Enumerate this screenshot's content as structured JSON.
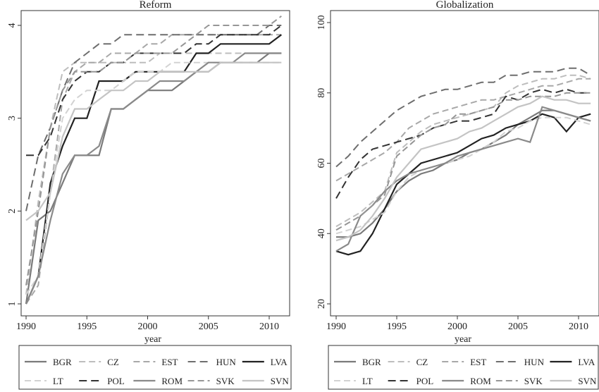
{
  "chart_data": [
    {
      "type": "line",
      "title": "Reform",
      "xlabel": "year",
      "ylabel": "",
      "xlim": [
        1990,
        2011.5
      ],
      "ylim": [
        1,
        4.1
      ],
      "xticks": [
        "1990",
        "1995",
        "2000",
        "2005",
        "2010"
      ],
      "yticks": [
        "1",
        "2",
        "3",
        "4"
      ],
      "grid": false,
      "x": [
        1990,
        1991,
        1992,
        1993,
        1994,
        1995,
        1996,
        1997,
        1998,
        1999,
        2000,
        2001,
        2002,
        2003,
        2004,
        2005,
        2006,
        2007,
        2008,
        2009,
        2010,
        2011
      ],
      "series": [
        {
          "name": "BGR",
          "color": "#7a7a7a",
          "dash": "",
          "width": 2.2,
          "values": [
            1.0,
            1.9,
            2.0,
            2.3,
            2.6,
            2.6,
            2.6,
            3.1,
            3.1,
            3.2,
            3.3,
            3.3,
            3.3,
            3.4,
            3.5,
            3.5,
            3.6,
            3.6,
            3.6,
            3.6,
            3.7,
            3.7
          ]
        },
        {
          "name": "CZ",
          "color": "#bdbdbd",
          "dash": "9,5",
          "width": 2.0,
          "values": [
            1.1,
            2.1,
            2.9,
            3.5,
            3.6,
            3.6,
            3.6,
            3.6,
            3.6,
            3.6,
            3.6,
            3.7,
            3.7,
            3.7,
            3.7,
            3.7,
            3.7,
            3.7,
            3.7,
            3.7,
            3.7,
            3.7
          ]
        },
        {
          "name": "EST",
          "color": "#a8a8a8",
          "dash": "9,5",
          "width": 2.0,
          "values": [
            1.0,
            1.2,
            2.2,
            3.2,
            3.5,
            3.6,
            3.6,
            3.7,
            3.7,
            3.7,
            3.8,
            3.8,
            3.9,
            3.9,
            3.9,
            3.9,
            3.9,
            3.9,
            3.9,
            3.9,
            3.9,
            3.9
          ]
        },
        {
          "name": "HUN",
          "color": "#6e6e6e",
          "dash": "11,6",
          "width": 2.0,
          "values": [
            2.0,
            2.6,
            2.9,
            3.3,
            3.6,
            3.7,
            3.8,
            3.8,
            3.9,
            3.9,
            3.9,
            3.9,
            3.9,
            3.9,
            3.9,
            3.9,
            3.9,
            3.9,
            3.9,
            3.9,
            4.0,
            4.0
          ]
        },
        {
          "name": "LVA",
          "color": "#222222",
          "dash": "",
          "width": 2.2,
          "values": [
            1.0,
            1.3,
            2.3,
            2.7,
            3.0,
            3.0,
            3.4,
            3.4,
            3.4,
            3.5,
            3.5,
            3.5,
            3.5,
            3.5,
            3.7,
            3.7,
            3.8,
            3.8,
            3.8,
            3.8,
            3.8,
            3.9
          ]
        },
        {
          "name": "LT",
          "color": "#d2d2d2",
          "dash": "9,5",
          "width": 2.0,
          "values": [
            1.1,
            1.3,
            2.2,
            3.0,
            3.2,
            3.3,
            3.3,
            3.3,
            3.4,
            3.5,
            3.5,
            3.5,
            3.6,
            3.6,
            3.6,
            3.6,
            3.6,
            3.6,
            3.6,
            3.6,
            3.6,
            3.6
          ]
        },
        {
          "name": "POL",
          "color": "#333333",
          "dash": "11,6",
          "width": 2.0,
          "values": [
            2.6,
            2.6,
            2.8,
            3.2,
            3.4,
            3.5,
            3.5,
            3.6,
            3.6,
            3.7,
            3.7,
            3.7,
            3.7,
            3.7,
            3.8,
            3.8,
            3.9,
            3.9,
            3.9,
            3.9,
            3.9,
            4.0
          ]
        },
        {
          "name": "ROM",
          "color": "#8a8a8a",
          "dash": "",
          "width": 2.2,
          "values": [
            1.0,
            1.3,
            1.9,
            2.4,
            2.6,
            2.6,
            2.7,
            3.1,
            3.1,
            3.2,
            3.3,
            3.4,
            3.4,
            3.4,
            3.5,
            3.6,
            3.6,
            3.6,
            3.7,
            3.7,
            3.7,
            3.7
          ]
        },
        {
          "name": "SVK",
          "color": "#969696",
          "dash": "9,5",
          "width": 2.0,
          "values": [
            1.2,
            2.0,
            2.9,
            3.3,
            3.5,
            3.5,
            3.5,
            3.6,
            3.6,
            3.7,
            3.7,
            3.7,
            3.7,
            3.8,
            3.9,
            4.0,
            4.0,
            4.0,
            4.0,
            4.0,
            4.0,
            4.1
          ]
        },
        {
          "name": "SVN",
          "color": "#c4c4c4",
          "dash": "",
          "width": 2.2,
          "values": [
            1.9,
            2.0,
            2.2,
            2.8,
            3.1,
            3.1,
            3.2,
            3.3,
            3.3,
            3.4,
            3.4,
            3.5,
            3.5,
            3.5,
            3.5,
            3.5,
            3.6,
            3.6,
            3.6,
            3.6,
            3.6,
            3.6
          ]
        }
      ],
      "legend": {
        "position": "bottom",
        "columns": 5
      }
    },
    {
      "type": "line",
      "title": "Globalization",
      "xlabel": "year",
      "ylabel": "",
      "xlim": [
        1990,
        2011.5
      ],
      "ylim": [
        20,
        100
      ],
      "xticks": [
        "1990",
        "1995",
        "2000",
        "2005",
        "2010"
      ],
      "yticks": [
        "20",
        "40",
        "60",
        "80",
        "100"
      ],
      "grid": false,
      "x": [
        1990,
        1991,
        1992,
        1993,
        1994,
        1995,
        1996,
        1997,
        1998,
        1999,
        2000,
        2001,
        2002,
        2003,
        2004,
        2005,
        2006,
        2007,
        2008,
        2009,
        2010,
        2011
      ],
      "series": [
        {
          "name": "BGR",
          "color": "#7a7a7a",
          "dash": "",
          "width": 2.2,
          "values": [
            39,
            39,
            40,
            43,
            47,
            52,
            55,
            57,
            58,
            60,
            61,
            63,
            64,
            66,
            68,
            71,
            73,
            75,
            75,
            74,
            73,
            72
          ]
        },
        {
          "name": "CZ",
          "color": "#bdbdbd",
          "dash": "9,5",
          "width": 2.0,
          "values": [
            42,
            44,
            46,
            49,
            52,
            63,
            66,
            69,
            71,
            72,
            73,
            74,
            75,
            76,
            80,
            82,
            83,
            84,
            84,
            85,
            85,
            84
          ]
        },
        {
          "name": "EST",
          "color": "#a8a8a8",
          "dash": "9,5",
          "width": 2.0,
          "values": [
            55,
            57,
            59,
            61,
            63,
            66,
            70,
            72,
            74,
            75,
            76,
            77,
            78,
            78,
            79,
            80,
            81,
            82,
            82,
            83,
            84,
            84
          ]
        },
        {
          "name": "HUN",
          "color": "#6e6e6e",
          "dash": "11,6",
          "width": 2.0,
          "values": [
            59,
            62,
            66,
            69,
            72,
            75,
            77,
            79,
            80,
            81,
            81,
            82,
            83,
            83,
            85,
            85,
            86,
            86,
            86,
            87,
            87,
            85
          ]
        },
        {
          "name": "LVA",
          "color": "#222222",
          "dash": "",
          "width": 2.2,
          "values": [
            35,
            34,
            35,
            40,
            47,
            54,
            57,
            60,
            61,
            62,
            63,
            65,
            67,
            68,
            70,
            71,
            72,
            74,
            73,
            69,
            73,
            74
          ]
        },
        {
          "name": "LT",
          "color": "#d2d2d2",
          "dash": "9,5",
          "width": 2.0,
          "values": [
            40,
            41,
            42,
            44,
            46,
            52,
            56,
            58,
            59,
            60,
            61,
            62,
            64,
            66,
            69,
            70,
            72,
            73,
            73,
            73,
            72,
            71
          ]
        },
        {
          "name": "POL",
          "color": "#333333",
          "dash": "11,6",
          "width": 2.0,
          "values": [
            50,
            56,
            61,
            64,
            65,
            66,
            67,
            68,
            70,
            71,
            72,
            72,
            73,
            74,
            79,
            78,
            80,
            81,
            80,
            81,
            80,
            80
          ]
        },
        {
          "name": "ROM",
          "color": "#8a8a8a",
          "dash": "",
          "width": 2.2,
          "values": [
            35,
            37,
            45,
            48,
            52,
            55,
            57,
            58,
            59,
            60,
            62,
            63,
            64,
            65,
            66,
            67,
            66,
            76,
            75,
            74,
            73,
            72
          ]
        },
        {
          "name": "SVK",
          "color": "#969696",
          "dash": "9,5",
          "width": 2.0,
          "values": [
            41,
            43,
            45,
            48,
            51,
            62,
            65,
            68,
            70,
            71,
            74,
            74,
            75,
            76,
            78,
            78,
            79,
            79,
            79,
            80,
            80,
            80
          ]
        },
        {
          "name": "SVN",
          "color": "#c4c4c4",
          "dash": "",
          "width": 2.2,
          "values": [
            38,
            39,
            41,
            45,
            50,
            56,
            60,
            64,
            65,
            66,
            67,
            69,
            70,
            72,
            74,
            76,
            77,
            79,
            78,
            78,
            77,
            77
          ]
        }
      ],
      "legend": {
        "position": "bottom",
        "columns": 5
      }
    }
  ]
}
